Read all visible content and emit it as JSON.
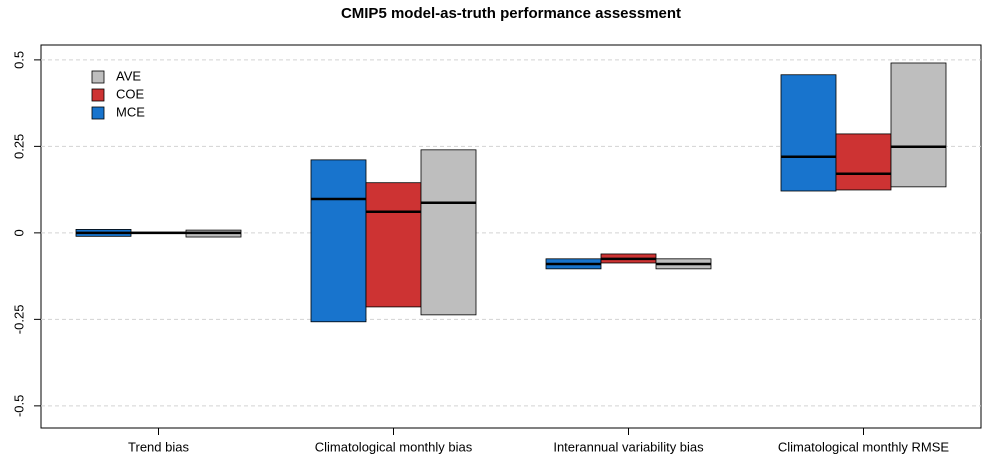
{
  "chart_data": {
    "type": "range-bar",
    "title": "CMIP5 model-as-truth performance assessment",
    "categories": [
      "Trend bias",
      "Climatological monthly bias",
      "Interannual variability bias",
      "Climatological monthly RMSE"
    ],
    "series": [
      {
        "name": "MCE",
        "color": "#1874cd",
        "low": [
          -0.01,
          -0.257,
          -0.104,
          0.121
        ],
        "high": [
          0.01,
          0.211,
          -0.075,
          0.457
        ],
        "mid": [
          0,
          0.098,
          -0.09,
          0.22
        ]
      },
      {
        "name": "COE",
        "color": "#cd3333",
        "low": [
          -0.002,
          -0.214,
          -0.087,
          0.124
        ],
        "high": [
          0.002,
          0.145,
          -0.061,
          0.286
        ],
        "mid": [
          0,
          0.061,
          -0.075,
          0.171
        ]
      },
      {
        "name": "AVE",
        "color": "#bebebe",
        "low": [
          -0.012,
          -0.237,
          -0.104,
          0.133
        ],
        "high": [
          0.008,
          0.24,
          -0.075,
          0.491
        ],
        "mid": [
          0,
          0.087,
          -0.09,
          0.249
        ]
      }
    ],
    "ylim": [
      -0.564,
      0.543
    ],
    "yticks": [
      -0.5,
      -0.25,
      0,
      0.25,
      0.5
    ],
    "grid": true,
    "legend": "top-left"
  }
}
